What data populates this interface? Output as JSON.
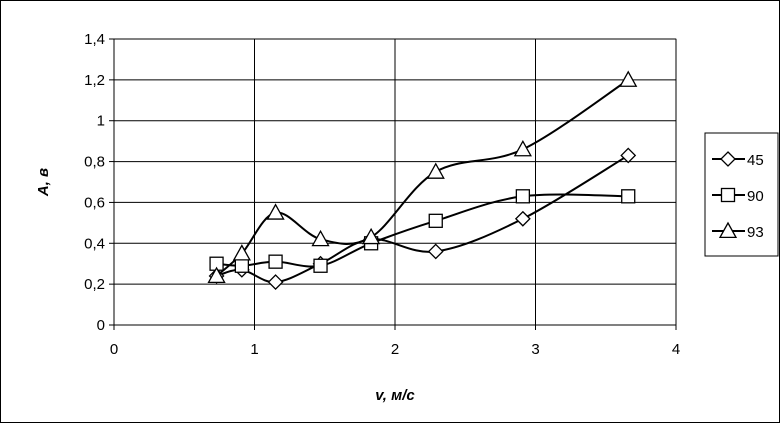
{
  "chart_data": {
    "type": "line",
    "xlabel": "v, м/с",
    "ylabel": "A, в",
    "xlim": [
      0,
      4
    ],
    "ylim": [
      0,
      1.4
    ],
    "x_ticks": [
      "0",
      "1",
      "2",
      "3",
      "4"
    ],
    "y_ticks": [
      "0",
      "0,2",
      "0,4",
      "0,6",
      "0,8",
      "1",
      "1,2",
      "1,4"
    ],
    "grid": true,
    "legend_position": "right",
    "series": [
      {
        "name": "45",
        "marker": "diamond",
        "x": [
          0.73,
          0.91,
          1.15,
          1.47,
          1.83,
          2.29,
          2.91,
          3.66
        ],
        "y": [
          0.24,
          0.27,
          0.21,
          0.3,
          0.42,
          0.36,
          0.52,
          0.83
        ]
      },
      {
        "name": "90",
        "marker": "square",
        "x": [
          0.73,
          0.91,
          1.15,
          1.47,
          1.83,
          2.29,
          2.91,
          3.66
        ],
        "y": [
          0.3,
          0.29,
          0.31,
          0.29,
          0.4,
          0.51,
          0.63,
          0.63
        ]
      },
      {
        "name": "93",
        "marker": "triangle",
        "x": [
          0.73,
          0.91,
          1.15,
          1.47,
          1.83,
          2.29,
          2.91,
          3.66
        ],
        "y": [
          0.24,
          0.35,
          0.55,
          0.42,
          0.43,
          0.75,
          0.86,
          1.2
        ]
      }
    ]
  }
}
